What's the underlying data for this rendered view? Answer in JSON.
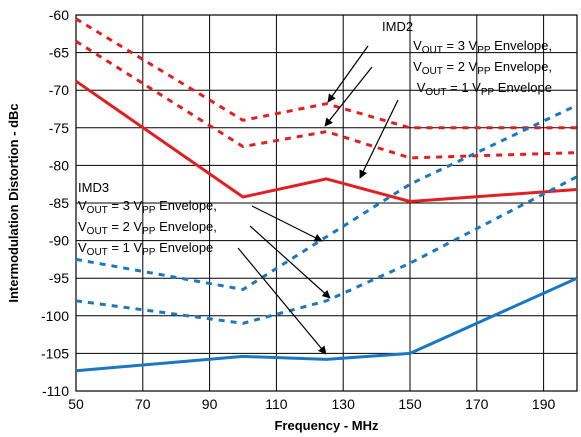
{
  "chart_data": {
    "type": "line",
    "xlabel": "Frequency - MHz",
    "ylabel": "Intermodulation Distortion - dBc",
    "xlim": [
      50,
      200
    ],
    "ylim": [
      -110,
      -60
    ],
    "x_ticks": [
      "50",
      "70",
      "90",
      "110",
      "130",
      "150",
      "170",
      "190"
    ],
    "y_ticks": [
      "-60",
      "-65",
      "-70",
      "-75",
      "-80",
      "-85",
      "-90",
      "-95",
      "-100",
      "-105",
      "-110"
    ],
    "grid": true,
    "series": [
      {
        "name": "IMD2 VOUT = 3 VPP Envelope",
        "color": "#e02020",
        "style": "dotted",
        "x": [
          50,
          100,
          125,
          150,
          200
        ],
        "y": [
          -60.5,
          -74,
          -71.8,
          -75,
          -75
        ]
      },
      {
        "name": "IMD2 VOUT = 2 VPP Envelope",
        "color": "#e02020",
        "style": "dotted",
        "x": [
          50,
          100,
          125,
          150,
          200
        ],
        "y": [
          -63.5,
          -77.5,
          -75.5,
          -79,
          -78.3
        ]
      },
      {
        "name": "IMD2 VOUT = 1 VPP Envelope",
        "color": "#e02020",
        "style": "solid",
        "x": [
          50,
          100,
          125,
          150,
          200
        ],
        "y": [
          -68.8,
          -84.2,
          -81.8,
          -84.8,
          -83.2
        ]
      },
      {
        "name": "IMD3 VOUT = 3 VPP Envelope",
        "color": "#1a78c2",
        "style": "dotted",
        "x": [
          50,
          75,
          100,
          125,
          150,
          200
        ],
        "y": [
          -92.5,
          -94.5,
          -96.5,
          -89.5,
          -82.5,
          -72
        ]
      },
      {
        "name": "IMD3 VOUT = 2 VPP Envelope",
        "color": "#1a78c2",
        "style": "dotted",
        "x": [
          50,
          75,
          100,
          125,
          150,
          200
        ],
        "y": [
          -98,
          -99.5,
          -101,
          -98,
          -93,
          -81.5
        ]
      },
      {
        "name": "IMD3 VOUT = 1 VPP Envelope",
        "color": "#1a78c2",
        "style": "solid",
        "x": [
          50,
          100,
          125,
          150,
          200
        ],
        "y": [
          -107.3,
          -105.4,
          -105.8,
          -105,
          -95
        ]
      }
    ],
    "annotations": {
      "imd2": {
        "heading": "IMD2",
        "lines": [
          {
            "pre": "V",
            "sub1": "OUT",
            "mid": " = 3 V",
            "sub2": "PP",
            "post": " Envelope,"
          },
          {
            "pre": "V",
            "sub1": "OUT",
            "mid": " = 2 V",
            "sub2": "PP",
            "post": " Envelope,"
          },
          {
            "pre": "V",
            "sub1": "OUT",
            "mid": " = 1 V",
            "sub2": "PP",
            "post": " Envelope"
          }
        ]
      },
      "imd3": {
        "heading": "IMD3",
        "lines": [
          {
            "pre": "V",
            "sub1": "OUT",
            "mid": " = 3 V",
            "sub2": "PP",
            "post": " Envelope,"
          },
          {
            "pre": "V",
            "sub1": "OUT",
            "mid": " = 2 V",
            "sub2": "PP",
            "post": " Envelope,"
          },
          {
            "pre": "V",
            "sub1": "OUT",
            "mid": " = 1 V",
            "sub2": "PP",
            "post": " Envelope"
          }
        ]
      }
    }
  }
}
